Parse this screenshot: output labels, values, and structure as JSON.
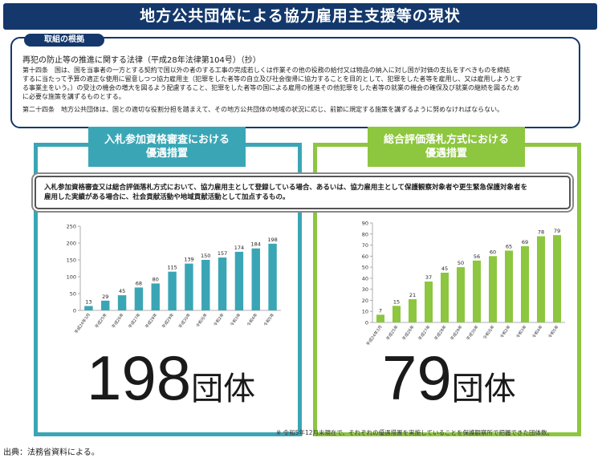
{
  "title": "地方公共団体による協力雇用主支援等の現状",
  "legal_basis": {
    "tab_label": "取組の根拠",
    "law_title": "再犯の防止等の推進に関する法律（平成28年法律第104号）（抄）",
    "article14_line1": "第十四条　国は、国を当事者の一方とする契約で国以外の者のする工事の完成若しくは作業その他の役務の給付又は物品の納入に対し国が対価の支払をすべきものを締結",
    "article14_line2": "するに当たって予算の適正な使用に留意しつつ協力雇用主（犯罪をした者等の自立及び社会復帰に協力することを目的として、犯罪をした者等を雇用し、又は雇用しようとす",
    "article14_line3": "る事業主をいう。）の受注の機会の増大を図るよう配慮すること、犯罪をした者等の国による雇用の推進その他犯罪をした者等の就業の機会の確保及び就業の継続を図るため",
    "article14_line4": "に必要な施策を講ずるものとする。",
    "article24": "第二十四条　地方公共団体は、国との適切な役割分担を踏まえて、その地方公共団体の地域の状況に応じ、前節に規定する施策を講ずるように努めなければならない。"
  },
  "panels": {
    "left_heading_line1": "入札参加資格審査における",
    "left_heading_line2": "優遇措置",
    "right_heading_line1": "総合評価落札方式における",
    "right_heading_line2": "優遇措置"
  },
  "callout_line1": "入札参加資格審査又は総合評価落札方式において、協力雇用主として登録している場合、あるいは、協力雇用主として保護観察対象者や更生緊急保護対象者を",
  "callout_line2": "雇用した実績がある場合に、社会貢献活動や地域貢献活動として加点するもの。",
  "left_total_number": "198",
  "left_total_unit": "団体",
  "right_total_number": "79",
  "right_total_unit": "団体",
  "note": "※ 令和5年12月末現在で、それぞれの優遇措置を実施していることを保護観察所で把握できた団体数。",
  "source": "出典：法務省資料による。",
  "colors": {
    "navy": "#14386b",
    "teal": "#3aa6b5",
    "green": "#8dc63f"
  },
  "chart_data": [
    {
      "type": "bar",
      "categories": [
        "平成24年3月",
        "平成25年",
        "平成26年",
        "平成27年",
        "平成28年",
        "平成29年",
        "平成30年",
        "令和元年",
        "令和2年",
        "令和3年",
        "令和4年",
        "令和5年"
      ],
      "values": [
        13,
        29,
        45,
        68,
        80,
        115,
        139,
        150,
        157,
        174,
        184,
        198
      ],
      "title": "",
      "xlabel": "",
      "ylabel": "",
      "ylim": [
        0,
        250
      ],
      "yticks": [
        0,
        50,
        100,
        150,
        200,
        250
      ],
      "grid": false,
      "color": "#3aa6b5"
    },
    {
      "type": "bar",
      "categories": [
        "平成24年3月",
        "平成25年",
        "平成26年",
        "平成27年",
        "平成28年",
        "平成29年",
        "平成30年",
        "令和元年",
        "令和2年",
        "令和3年",
        "令和4年",
        "令和5年"
      ],
      "values": [
        7,
        15,
        21,
        37,
        45,
        50,
        56,
        60,
        65,
        69,
        78,
        79
      ],
      "title": "",
      "xlabel": "",
      "ylabel": "",
      "ylim": [
        0,
        90
      ],
      "yticks": [
        0,
        10,
        20,
        30,
        40,
        50,
        60,
        70,
        80,
        90
      ],
      "grid": false,
      "color": "#8dc63f"
    }
  ]
}
